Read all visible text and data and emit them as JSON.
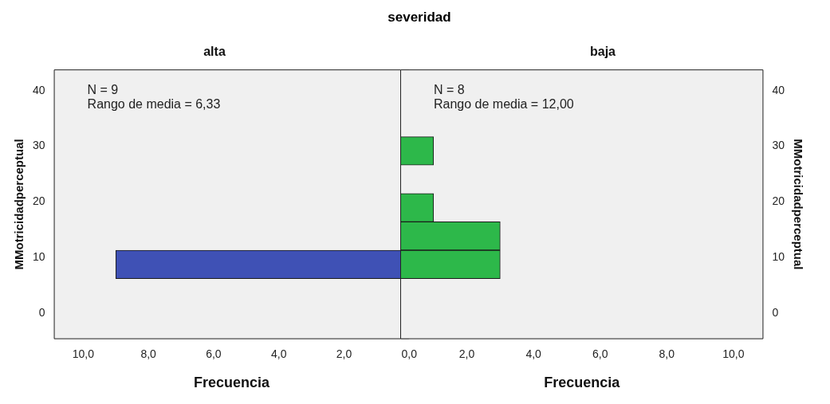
{
  "chart_data": [
    {
      "type": "histogram",
      "orientation": "horizontal",
      "title": "severidad",
      "subtitle": "alta",
      "xlabel": "Frecuencia",
      "ylabel": "MMotricidadperceptual",
      "bins": [
        6.2,
        11.3,
        16.4,
        21.5,
        26.6,
        31.7
      ],
      "values": [
        9,
        0,
        0,
        0,
        0
      ],
      "color": "#3f51b5",
      "xlim": [
        10.9,
        0
      ],
      "xticks": [
        {
          "value": 10,
          "label": "10,0"
        },
        {
          "value": 8,
          "label": "8,0"
        },
        {
          "value": 6,
          "label": "6,0"
        },
        {
          "value": 4,
          "label": "4,0"
        },
        {
          "value": 2,
          "label": "2,0"
        },
        {
          "value": 0,
          "label": "0,0"
        }
      ],
      "ylim": [
        -4.7,
        43.8
      ],
      "yticks": [
        0,
        10,
        20,
        30,
        40
      ],
      "annotations": [
        "N = 9",
        "Rango de media = 6,33"
      ]
    },
    {
      "type": "histogram",
      "orientation": "horizontal",
      "subtitle": "baja",
      "xlabel": "Frecuencia",
      "ylabel": "MMotricidadperceptual",
      "bins": [
        6.2,
        11.3,
        16.4,
        21.5,
        26.6,
        31.7
      ],
      "values": [
        3,
        3,
        1,
        0,
        1
      ],
      "color": "#2db84a",
      "xlim": [
        0,
        10.9
      ],
      "xticks": [
        {
          "value": 0,
          "label": null
        },
        {
          "value": 2,
          "label": "2,0"
        },
        {
          "value": 4,
          "label": "4,0"
        },
        {
          "value": 6,
          "label": "6,0"
        },
        {
          "value": 8,
          "label": "8,0"
        },
        {
          "value": 10,
          "label": "10,0"
        }
      ],
      "ylim": [
        -4.7,
        43.8
      ],
      "yticks": [
        0,
        10,
        20,
        30,
        40
      ],
      "annotations": [
        "N = 8",
        "Rango de media = 12,00"
      ]
    }
  ]
}
